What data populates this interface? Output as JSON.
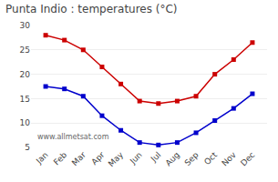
{
  "chart_data": {
    "type": "line",
    "title": "Punta Indio : temperatures (°C)",
    "categories": [
      "Jan",
      "Feb",
      "Mar",
      "Apr",
      "May",
      "Jun",
      "Jul",
      "Aug",
      "Sep",
      "Oct",
      "Nov",
      "Dec"
    ],
    "series": [
      {
        "color": "#cc0000",
        "values": [
          28,
          27,
          25,
          21.5,
          18,
          14.5,
          14,
          14.5,
          15.5,
          20,
          23,
          26.5
        ]
      },
      {
        "color": "#0000cc",
        "values": [
          17.5,
          17,
          15.5,
          11.5,
          8.5,
          6,
          5.5,
          6,
          8,
          10.5,
          13,
          16
        ]
      }
    ],
    "marker": "square",
    "line_style": "solid",
    "ylim": [
      5,
      30
    ],
    "yticks": [
      5,
      10,
      15,
      20,
      25,
      30
    ],
    "grid": "y",
    "annotations": [
      "www.allmetsat.com"
    ]
  }
}
